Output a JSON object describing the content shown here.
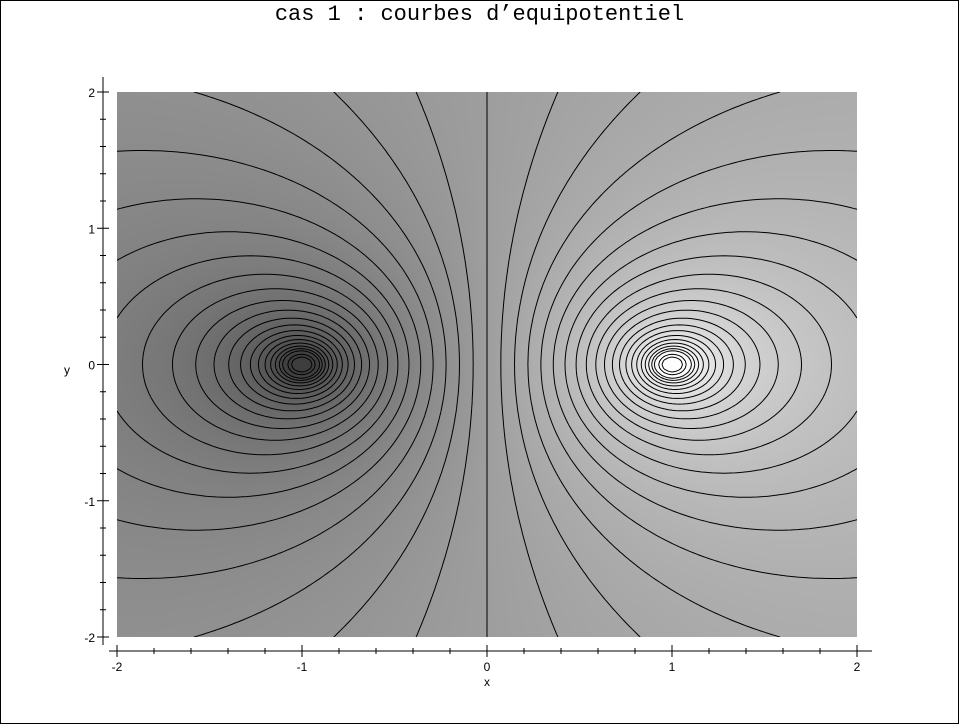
{
  "chart_data": {
    "type": "contour",
    "title": "cas 1 : courbes d’equipotentiel",
    "xlabel": "x",
    "ylabel": "y",
    "xlim": [
      -2,
      2
    ],
    "ylim": [
      -2,
      2
    ],
    "x_ticks": [
      "-2",
      "-1",
      "0",
      "1",
      "2"
    ],
    "y_ticks": [
      "2",
      "1",
      "0",
      "-1",
      "-2"
    ],
    "grid": false,
    "shading": "grayscale",
    "sources": [
      {
        "x": -1,
        "y": 0,
        "sign": "negative",
        "shade": "dark"
      },
      {
        "x": 1,
        "y": 0,
        "sign": "positive",
        "shade": "light"
      }
    ],
    "contour_levels": [
      0,
      0.15,
      0.3,
      0.45,
      0.6,
      0.75,
      0.9,
      1.05,
      1.2,
      1.35,
      1.5,
      1.65,
      1.8,
      1.95,
      2.1,
      2.25,
      2.4,
      2.55,
      2.7,
      2.85,
      3.0,
      3.3,
      3.6
    ],
    "colors": {
      "frame": "#000000",
      "contour": "#000000",
      "background": "#ffffff"
    }
  }
}
